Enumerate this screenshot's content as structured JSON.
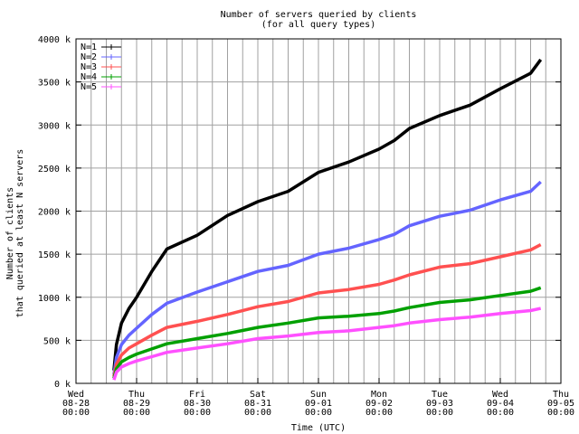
{
  "chart_data": {
    "type": "line",
    "title": "Number of servers queried by clients",
    "subtitle": "(for all query types)",
    "x_label": "Time (UTC)",
    "y_label": [
      "Number of clients",
      "that queried at least N servers"
    ],
    "grid": true,
    "x_minor_ticks": 4,
    "legend": "top-left",
    "xlim": [
      "08-28 00:00",
      "09-05 00:00"
    ],
    "xticks": [
      {
        "value": "08-28 00:00",
        "label": [
          "Wed",
          "08-28",
          "00:00"
        ]
      },
      {
        "value": "08-29 00:00",
        "label": [
          "Thu",
          "08-29",
          "00:00"
        ]
      },
      {
        "value": "08-30 00:00",
        "label": [
          "Fri",
          "08-30",
          "00:00"
        ]
      },
      {
        "value": "08-31 00:00",
        "label": [
          "Sat",
          "08-31",
          "00:00"
        ]
      },
      {
        "value": "09-01 00:00",
        "label": [
          "Sun",
          "09-01",
          "00:00"
        ]
      },
      {
        "value": "09-02 00:00",
        "label": [
          "Mon",
          "09-02",
          "00:00"
        ]
      },
      {
        "value": "09-03 00:00",
        "label": [
          "Tue",
          "09-03",
          "00:00"
        ]
      },
      {
        "value": "09-04 00:00",
        "label": [
          "Wed",
          "09-04",
          "00:00"
        ]
      },
      {
        "value": "09-05 00:00",
        "label": [
          "Thu",
          "09-05",
          "00:00"
        ]
      }
    ],
    "ylim": [
      0,
      4000000
    ],
    "yticks": [
      {
        "value": 0,
        "label": "0 k"
      },
      {
        "value": 500000,
        "label": "500 k"
      },
      {
        "value": 1000000,
        "label": "1000 k"
      },
      {
        "value": 1500000,
        "label": "1500 k"
      },
      {
        "value": 2000000,
        "label": "2000 k"
      },
      {
        "value": 2500000,
        "label": "2500 k"
      },
      {
        "value": 3000000,
        "label": "3000 k"
      },
      {
        "value": 3500000,
        "label": "3500 k"
      },
      {
        "value": 4000000,
        "label": "4000 k"
      }
    ],
    "x": [
      "08-28 15:00",
      "08-28 16:00",
      "08-28 18:00",
      "08-28 21:00",
      "08-29 00:00",
      "08-29 06:00",
      "08-29 12:00",
      "08-30 00:00",
      "08-30 12:00",
      "08-31 00:00",
      "08-31 12:00",
      "09-01 00:00",
      "09-01 12:00",
      "09-02 00:00",
      "09-02 06:00",
      "09-02 12:00",
      "09-03 00:00",
      "09-03 12:00",
      "09-04 00:00",
      "09-04 12:00",
      "09-04 16:00"
    ],
    "series": [
      {
        "name": "N=1",
        "color": "#000000",
        "values": [
          150000,
          450000,
          700000,
          870000,
          1000000,
          1300000,
          1560000,
          1720000,
          1950000,
          2110000,
          2230000,
          2450000,
          2570000,
          2720000,
          2820000,
          2960000,
          3110000,
          3230000,
          3420000,
          3600000,
          3760000
        ]
      },
      {
        "name": "N=2",
        "color": "#6464ff",
        "values": [
          100000,
          300000,
          450000,
          560000,
          640000,
          800000,
          930000,
          1060000,
          1180000,
          1300000,
          1370000,
          1500000,
          1570000,
          1670000,
          1730000,
          1830000,
          1940000,
          2010000,
          2130000,
          2230000,
          2340000
        ]
      },
      {
        "name": "N=3",
        "color": "#ff5050",
        "values": [
          80000,
          220000,
          330000,
          410000,
          460000,
          560000,
          650000,
          720000,
          800000,
          890000,
          950000,
          1050000,
          1090000,
          1150000,
          1200000,
          1260000,
          1350000,
          1390000,
          1470000,
          1550000,
          1610000
        ]
      },
      {
        "name": "N=4",
        "color": "#00a000",
        "values": [
          60000,
          170000,
          250000,
          300000,
          340000,
          400000,
          460000,
          520000,
          580000,
          650000,
          700000,
          760000,
          780000,
          810000,
          840000,
          880000,
          940000,
          970000,
          1020000,
          1070000,
          1110000
        ]
      },
      {
        "name": "N=5",
        "color": "#ff50ff",
        "values": [
          40000,
          130000,
          190000,
          230000,
          260000,
          310000,
          360000,
          410000,
          460000,
          520000,
          550000,
          590000,
          610000,
          650000,
          670000,
          700000,
          740000,
          770000,
          810000,
          845000,
          870000
        ]
      }
    ]
  }
}
